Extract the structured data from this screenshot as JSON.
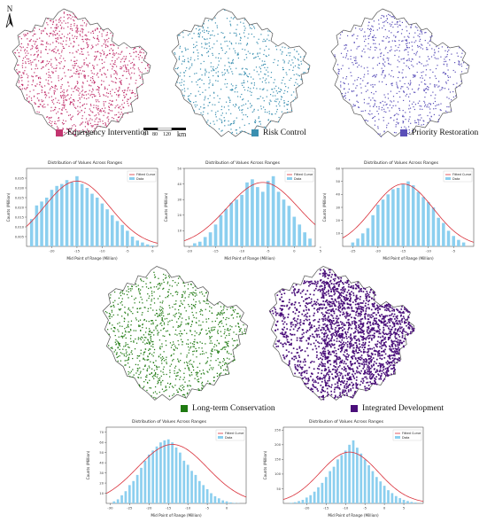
{
  "compass": {
    "label": "N"
  },
  "scale": {
    "ticks": [
      "0",
      "80",
      "120"
    ],
    "unit": "km"
  },
  "maps": [
    {
      "id": "emergency",
      "label": "Emergency Intervention",
      "color": "#c2356f",
      "density": 1200
    },
    {
      "id": "risk",
      "label": "Risk Control",
      "color": "#3a8fb0",
      "density": 700
    },
    {
      "id": "priority",
      "label": "Priority Restoration",
      "color": "#5a4fb8",
      "density": 750
    },
    {
      "id": "longterm",
      "label": "Long-term Conservation",
      "color": "#1f7a12",
      "density": 1100
    },
    {
      "id": "integrated",
      "label": "Integrated Development",
      "color": "#4a0f7a",
      "density": 2200
    }
  ],
  "chart_common": {
    "title": "Distribution of Values Across Ranges",
    "xlabel": "Mid Point of Range (Million)",
    "ylabel": "Counts (Million)",
    "legend_fit": "Fitted Curve",
    "legend_data": "Data"
  },
  "chart_data": [
    {
      "type": "bar",
      "id": "c1",
      "x": [
        -24,
        -23,
        -22,
        -21,
        -20,
        -19,
        -18,
        -17,
        -16,
        -15,
        -14,
        -13,
        -12,
        -11,
        -10,
        -9,
        -8,
        -7,
        -6,
        -5,
        -4,
        -3,
        -2,
        -1,
        0
      ],
      "values": [
        0.014,
        0.021,
        0.023,
        0.025,
        0.029,
        0.031,
        0.032,
        0.034,
        0.033,
        0.036,
        0.032,
        0.03,
        0.027,
        0.025,
        0.022,
        0.019,
        0.016,
        0.013,
        0.011,
        0.008,
        0.005,
        0.003,
        0.002,
        0.001,
        0.0005
      ],
      "fit": {
        "mu": -15,
        "sigma": 6.5,
        "peak": 0.0335,
        "uptick": true
      },
      "xlim": [
        -25,
        1
      ],
      "ylim": [
        0,
        0.04
      ],
      "xticks": [
        -20,
        -15,
        -10,
        -5,
        0
      ],
      "yticks": [
        0.005,
        0.01,
        0.015,
        0.02,
        0.025,
        0.03,
        0.035
      ]
    },
    {
      "type": "bar",
      "id": "c2",
      "x": [
        -19,
        -18,
        -17,
        -16,
        -15,
        -14,
        -13,
        -12,
        -11,
        -10,
        -9,
        -8,
        -7,
        -6,
        -5,
        -4,
        -3,
        -2,
        -1,
        0,
        1,
        2,
        3
      ],
      "values": [
        2,
        3,
        6,
        9,
        14,
        20,
        24,
        28,
        30,
        33,
        41,
        43,
        38,
        35,
        42,
        45,
        35,
        30,
        26,
        19,
        14,
        9,
        5
      ],
      "fit": {
        "mu": -6,
        "sigma": 6.8,
        "peak": 41,
        "uptick": true
      },
      "xlim": [
        -21,
        4
      ],
      "ylim": [
        0,
        50
      ],
      "xticks": [
        -20,
        -15,
        -10,
        -5,
        0,
        5
      ],
      "yticks": [
        10,
        20,
        30,
        40,
        50
      ]
    },
    {
      "type": "bar",
      "id": "c3",
      "x": [
        -25,
        -24,
        -23,
        -22,
        -21,
        -20,
        -19,
        -18,
        -17,
        -16,
        -15,
        -14,
        -13,
        -12,
        -11,
        -10,
        -9,
        -8,
        -7,
        -6,
        -5,
        -4,
        -3
      ],
      "values": [
        3,
        6,
        10,
        14,
        24,
        32,
        36,
        40,
        44,
        45,
        48,
        50,
        47,
        42,
        38,
        34,
        30,
        22,
        18,
        12,
        8,
        5,
        3
      ],
      "fit": {
        "mu": -15,
        "sigma": 6,
        "peak": 48,
        "uptick": true
      },
      "xlim": [
        -27,
        -1
      ],
      "ylim": [
        0,
        60
      ],
      "xticks": [
        -25,
        -20,
        -15,
        -10,
        -5
      ],
      "yticks": [
        10,
        20,
        30,
        40,
        50,
        60
      ]
    },
    {
      "type": "bar",
      "id": "c4",
      "x": [
        -29,
        -28,
        -27,
        -26,
        -25,
        -24,
        -23,
        -22,
        -21,
        -20,
        -19,
        -18,
        -17,
        -16,
        -15,
        -14,
        -13,
        -12,
        -11,
        -10,
        -9,
        -8,
        -7,
        -6,
        -5,
        -4,
        -3,
        -2,
        -1,
        0,
        1,
        2,
        3
      ],
      "values": [
        2,
        4,
        8,
        12,
        18,
        22,
        28,
        35,
        42,
        48,
        52,
        56,
        60,
        62,
        63,
        60,
        55,
        50,
        42,
        38,
        32,
        28,
        22,
        18,
        14,
        10,
        7,
        5,
        3,
        2,
        1,
        0.5,
        0.3
      ],
      "fit": {
        "mu": -14,
        "sigma": 9,
        "peak": 58,
        "uptick": true
      },
      "xlim": [
        -31,
        5
      ],
      "ylim": [
        0,
        75
      ],
      "xticks": [
        -30,
        -25,
        -20,
        -15,
        -10,
        -5,
        0
      ],
      "yticks": [
        10,
        20,
        30,
        40,
        50,
        60,
        70
      ]
    },
    {
      "type": "bar",
      "id": "c5",
      "x": [
        -24,
        -23,
        -22,
        -21,
        -20,
        -19,
        -18,
        -17,
        -16,
        -15,
        -14,
        -13,
        -12,
        -11,
        -10,
        -9,
        -8,
        -7,
        -6,
        -5,
        -4,
        -3,
        -2,
        -1,
        0,
        1,
        2,
        3,
        4,
        5,
        6,
        7,
        8
      ],
      "values": [
        2,
        4,
        8,
        12,
        20,
        28,
        40,
        55,
        70,
        90,
        110,
        125,
        150,
        165,
        180,
        200,
        215,
        190,
        170,
        150,
        130,
        110,
        90,
        75,
        60,
        45,
        35,
        25,
        18,
        12,
        8,
        5,
        3
      ],
      "fit": {
        "mu": -9,
        "sigma": 7.5,
        "peak": 175,
        "uptick": true
      },
      "xlim": [
        -26,
        10
      ],
      "ylim": [
        0,
        260
      ],
      "xticks": [
        -20,
        -15,
        -10,
        -5,
        0,
        5
      ],
      "yticks": [
        50,
        100,
        150,
        200,
        250
      ]
    }
  ]
}
